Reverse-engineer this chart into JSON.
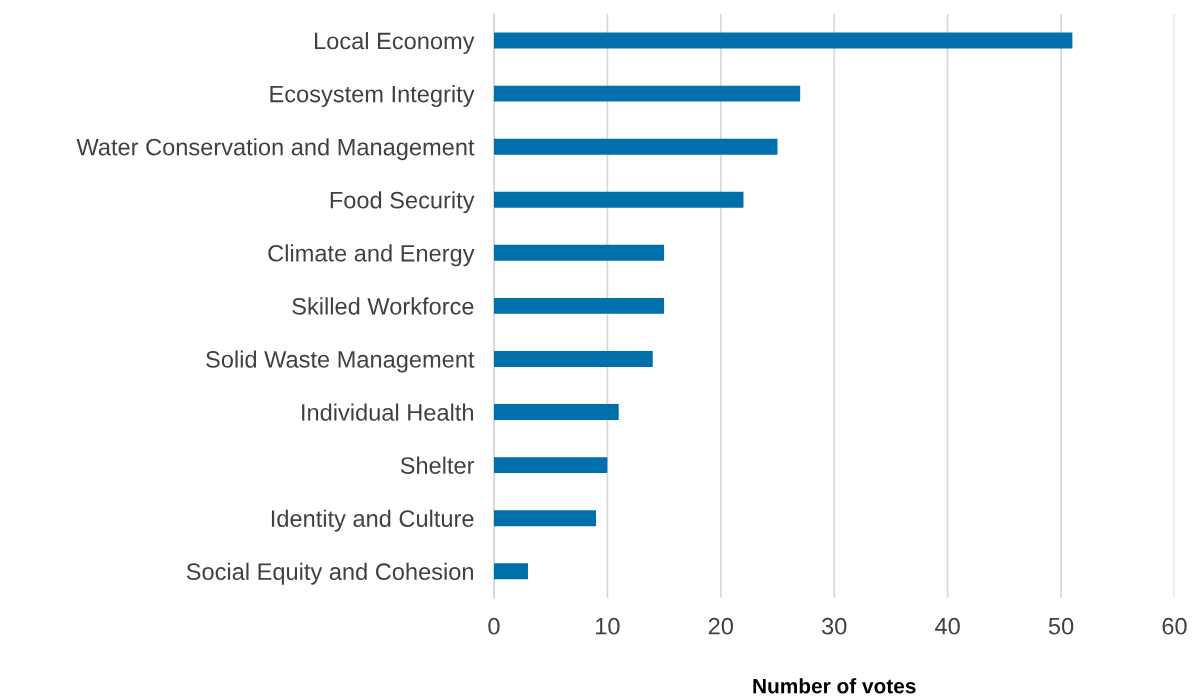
{
  "chart_data": {
    "type": "bar",
    "orientation": "horizontal",
    "xlabel": "Number of votes",
    "categories": [
      "Local Economy",
      "Ecosystem Integrity",
      "Water Conservation and Management",
      "Food Security",
      "Climate and Energy",
      "Skilled Workforce",
      "Solid Waste Management",
      "Individual Health",
      "Shelter",
      "Identity and Culture",
      "Social Equity and Cohesion"
    ],
    "values": [
      51,
      27,
      25,
      22,
      15,
      15,
      14,
      11,
      10,
      9,
      3
    ],
    "color": "#0070ad",
    "xlim": [
      0,
      60
    ],
    "xticks": [
      0,
      10,
      20,
      30,
      40,
      50,
      60
    ],
    "grid": "x"
  }
}
